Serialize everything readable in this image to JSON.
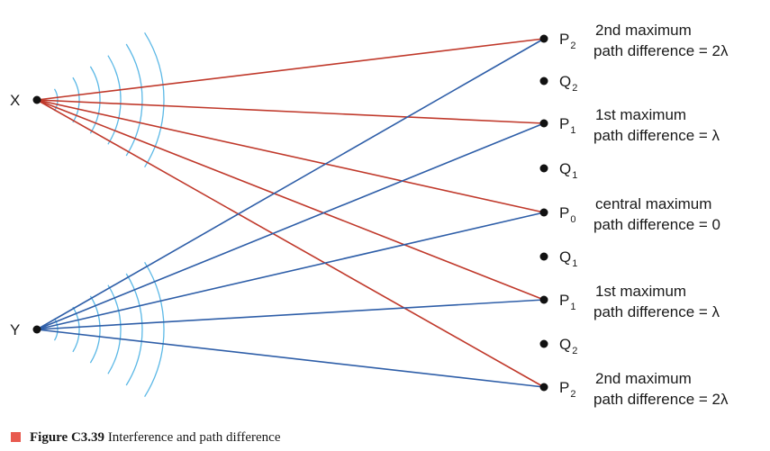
{
  "sources": [
    {
      "id": "X",
      "label": "X",
      "color": "#c0392b"
    },
    {
      "id": "Y",
      "label": "Y",
      "color": "#2e5ea8"
    }
  ],
  "points": [
    {
      "id": "P2a",
      "letter": "P",
      "sub": "2",
      "kind": "maximum",
      "desc1": "2nd maximum",
      "desc2": "path difference = 2λ"
    },
    {
      "id": "Q2a",
      "letter": "Q",
      "sub": "2",
      "kind": "minimum"
    },
    {
      "id": "P1a",
      "letter": "P",
      "sub": "1",
      "kind": "maximum",
      "desc1": "1st maximum",
      "desc2": "path difference = λ"
    },
    {
      "id": "Q1a",
      "letter": "Q",
      "sub": "1",
      "kind": "minimum"
    },
    {
      "id": "P0",
      "letter": "P",
      "sub": "0",
      "kind": "maximum",
      "desc1": "central maximum",
      "desc2": "path difference = 0"
    },
    {
      "id": "Q1b",
      "letter": "Q",
      "sub": "1",
      "kind": "minimum"
    },
    {
      "id": "P1b",
      "letter": "P",
      "sub": "1",
      "kind": "maximum",
      "desc1": "1st maximum",
      "desc2": "path difference = λ"
    },
    {
      "id": "Q2b",
      "letter": "Q",
      "sub": "2",
      "kind": "minimum"
    },
    {
      "id": "P2b",
      "letter": "P",
      "sub": "2",
      "kind": "maximum",
      "desc1": "2nd maximum",
      "desc2": "path difference = 2λ"
    }
  ],
  "wave_color": "#5bb8e6",
  "caption": {
    "label": "Figure C3.39",
    "text": " Interference and path difference",
    "marker_color": "#e85a4f"
  }
}
